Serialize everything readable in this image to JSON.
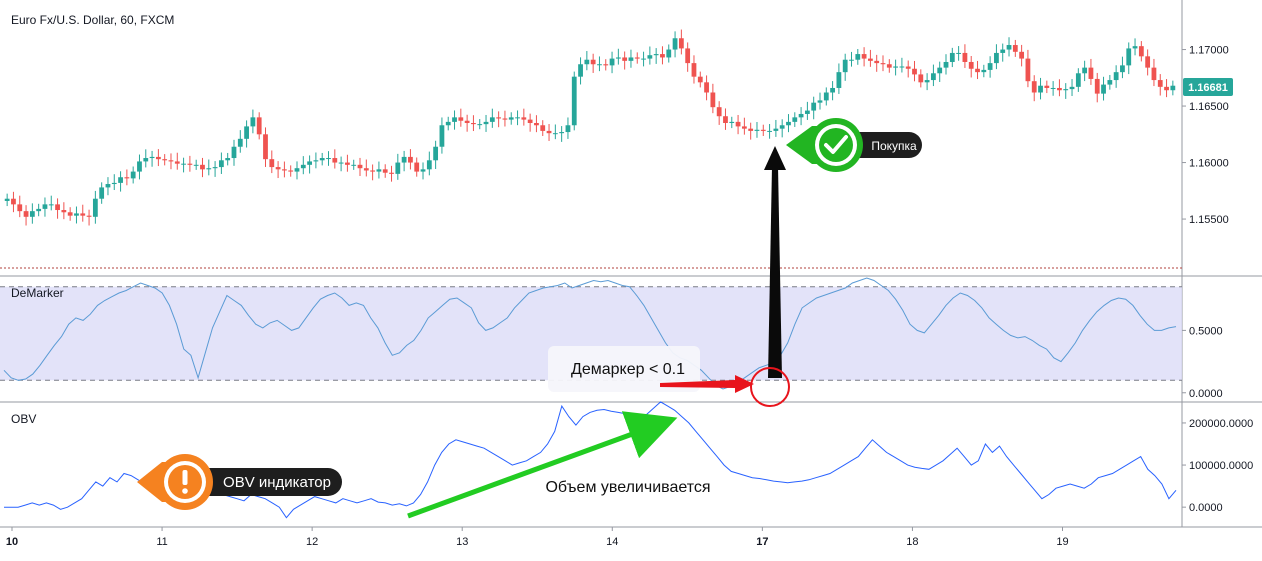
{
  "chart_data": [
    {
      "type": "candlestick",
      "title": "Euro Fx/U.S. Dollar, 60, FXCM",
      "last_price": "1.16681",
      "price_axis_ticks": [
        "1.17000",
        "1.16500",
        "1.16000",
        "1.15500"
      ],
      "time_axis_ticks": [
        "10",
        "11",
        "12",
        "13",
        "14",
        "17",
        "18",
        "19"
      ],
      "ylim": [
        1.1512,
        1.1735
      ],
      "colors": {
        "up": "#26a69a",
        "down": "#ef5350",
        "last_price_badge": "#26a69a"
      },
      "closes": [
        1.1568,
        1.1563,
        1.1557,
        1.1552,
        1.1557,
        1.1559,
        1.1563,
        1.1563,
        1.1558,
        1.1556,
        1.1553,
        1.1555,
        1.1553,
        1.1552,
        1.1568,
        1.1578,
        1.1581,
        1.1582,
        1.1587,
        1.1586,
        1.1592,
        1.1601,
        1.1604,
        1.1605,
        1.1603,
        1.1602,
        1.1601,
        1.1599,
        1.1599,
        1.1598,
        1.1598,
        1.1594,
        1.1595,
        1.1596,
        1.1602,
        1.1604,
        1.1614,
        1.1621,
        1.1632,
        1.164,
        1.1625,
        1.1603,
        1.1596,
        1.1594,
        1.1593,
        1.1592,
        1.1595,
        1.1598,
        1.1601,
        1.1602,
        1.1604,
        1.1604,
        1.16,
        1.16,
        1.1598,
        1.1598,
        1.1595,
        1.1593,
        1.1592,
        1.1594,
        1.1591,
        1.159,
        1.16,
        1.1605,
        1.16,
        1.1592,
        1.1594,
        1.1602,
        1.1614,
        1.1633,
        1.1636,
        1.164,
        1.1637,
        1.1635,
        1.1634,
        1.1634,
        1.1636,
        1.164,
        1.1639,
        1.1638,
        1.164,
        1.164,
        1.1638,
        1.1635,
        1.1633,
        1.1628,
        1.1626,
        1.1626,
        1.1627,
        1.1633,
        1.1676,
        1.1687,
        1.1691,
        1.1687,
        1.1687,
        1.1686,
        1.1692,
        1.1693,
        1.169,
        1.1693,
        1.1692,
        1.1692,
        1.1695,
        1.1696,
        1.1693,
        1.17,
        1.171,
        1.1701,
        1.1688,
        1.1676,
        1.1671,
        1.1662,
        1.1649,
        1.1641,
        1.1635,
        1.1636,
        1.1632,
        1.163,
        1.1628,
        1.1629,
        1.1628,
        1.1628,
        1.163,
        1.1633,
        1.1636,
        1.164,
        1.1643,
        1.1646,
        1.1653,
        1.1655,
        1.1662,
        1.1666,
        1.168,
        1.1691,
        1.1691,
        1.1696,
        1.1692,
        1.169,
        1.1688,
        1.1687,
        1.1684,
        1.1685,
        1.1685,
        1.1683,
        1.1678,
        1.1671,
        1.1673,
        1.1679,
        1.1684,
        1.1689,
        1.1697,
        1.1697,
        1.1689,
        1.1683,
        1.168,
        1.1682,
        1.1688,
        1.1697,
        1.17,
        1.1704,
        1.1698,
        1.1692,
        1.1672,
        1.1662,
        1.1668,
        1.1666,
        1.1666,
        1.1664,
        1.1665,
        1.1667,
        1.1679,
        1.1684,
        1.1674,
        1.1661,
        1.1669,
        1.1673,
        1.168,
        1.1686,
        1.1701,
        1.1703,
        1.1694,
        1.1684,
        1.1673,
        1.1667,
        1.1664,
        1.1668
      ]
    },
    {
      "type": "line",
      "title": "DeMarker",
      "axis_ticks": [
        "0.5000",
        "0.0000"
      ],
      "ylim": [
        -0.05,
        0.92
      ],
      "levels": [
        0.1,
        0.85
      ],
      "colors": {
        "line": "#5b9bd5",
        "band": "#dcdcf8"
      },
      "values": [
        0.18,
        0.12,
        0.1,
        0.11,
        0.15,
        0.22,
        0.3,
        0.38,
        0.45,
        0.55,
        0.6,
        0.58,
        0.63,
        0.7,
        0.74,
        0.77,
        0.8,
        0.82,
        0.85,
        0.88,
        0.86,
        0.84,
        0.8,
        0.7,
        0.55,
        0.35,
        0.3,
        0.12,
        0.32,
        0.52,
        0.65,
        0.78,
        0.74,
        0.7,
        0.62,
        0.55,
        0.52,
        0.56,
        0.58,
        0.54,
        0.5,
        0.52,
        0.6,
        0.68,
        0.75,
        0.78,
        0.8,
        0.76,
        0.7,
        0.72,
        0.7,
        0.6,
        0.52,
        0.4,
        0.3,
        0.32,
        0.38,
        0.42,
        0.5,
        0.6,
        0.65,
        0.7,
        0.75,
        0.76,
        0.72,
        0.68,
        0.56,
        0.5,
        0.52,
        0.56,
        0.6,
        0.68,
        0.74,
        0.8,
        0.82,
        0.84,
        0.85,
        0.86,
        0.88,
        0.84,
        0.86,
        0.88,
        0.9,
        0.89,
        0.9,
        0.88,
        0.86,
        0.85,
        0.78,
        0.7,
        0.6,
        0.5,
        0.4,
        0.32,
        0.28,
        0.26,
        0.22,
        0.18,
        0.12,
        0.06,
        0.03,
        0.05,
        0.08,
        0.12,
        0.16,
        0.2,
        0.22,
        0.24,
        0.3,
        0.4,
        0.55,
        0.68,
        0.72,
        0.76,
        0.78,
        0.8,
        0.82,
        0.84,
        0.88,
        0.9,
        0.92,
        0.9,
        0.86,
        0.82,
        0.75,
        0.66,
        0.55,
        0.5,
        0.48,
        0.55,
        0.62,
        0.7,
        0.76,
        0.8,
        0.78,
        0.74,
        0.68,
        0.6,
        0.55,
        0.5,
        0.46,
        0.44,
        0.45,
        0.42,
        0.38,
        0.35,
        0.28,
        0.25,
        0.32,
        0.4,
        0.5,
        0.58,
        0.65,
        0.7,
        0.74,
        0.76,
        0.75,
        0.7,
        0.62,
        0.55,
        0.5,
        0.5,
        0.52,
        0.53
      ]
    },
    {
      "type": "line",
      "title": "OBV",
      "axis_ticks": [
        "200000.0000",
        "100000.0000",
        "0.0000"
      ],
      "ylim": [
        -40000,
        245000
      ],
      "colors": {
        "line": "#2962ff"
      },
      "values": [
        0,
        0,
        0,
        5000,
        10000,
        5000,
        10000,
        5000,
        -5000,
        0,
        10000,
        20000,
        40000,
        60000,
        50000,
        70000,
        60000,
        80000,
        75000,
        65000,
        55000,
        60000,
        50000,
        55000,
        45000,
        50000,
        40000,
        35000,
        30000,
        40000,
        35000,
        30000,
        25000,
        20000,
        15000,
        30000,
        25000,
        20000,
        10000,
        0,
        -25000,
        -5000,
        5000,
        15000,
        25000,
        20000,
        15000,
        10000,
        20000,
        15000,
        10000,
        15000,
        20000,
        12000,
        10000,
        5000,
        8000,
        3000,
        10000,
        30000,
        60000,
        100000,
        130000,
        150000,
        160000,
        155000,
        150000,
        145000,
        140000,
        130000,
        120000,
        110000,
        100000,
        105000,
        110000,
        120000,
        130000,
        150000,
        180000,
        240000,
        215000,
        195000,
        215000,
        225000,
        230000,
        232000,
        228000,
        225000,
        222000,
        218000,
        215000,
        220000,
        235000,
        250000,
        240000,
        230000,
        215000,
        200000,
        180000,
        160000,
        140000,
        120000,
        100000,
        85000,
        80000,
        75000,
        70000,
        68000,
        65000,
        62000,
        60000,
        58000,
        60000,
        62000,
        65000,
        70000,
        75000,
        80000,
        90000,
        100000,
        110000,
        120000,
        140000,
        160000,
        145000,
        130000,
        120000,
        110000,
        100000,
        95000,
        92000,
        90000,
        100000,
        110000,
        125000,
        140000,
        120000,
        100000,
        110000,
        150000,
        130000,
        145000,
        120000,
        100000,
        80000,
        60000,
        40000,
        20000,
        30000,
        45000,
        50000,
        55000,
        50000,
        45000,
        55000,
        70000,
        75000,
        80000,
        90000,
        100000,
        110000,
        120000,
        90000,
        75000,
        55000,
        20000,
        40000
      ]
    }
  ],
  "annotations": {
    "buy_label": "Покупка",
    "demarker_label": "Демаркер < 0.1",
    "obv_label": "OBV индикатор",
    "volume_label": "Объем увеличивается",
    "buy_icon": "check-icon",
    "obv_icon": "exclamation-icon"
  }
}
